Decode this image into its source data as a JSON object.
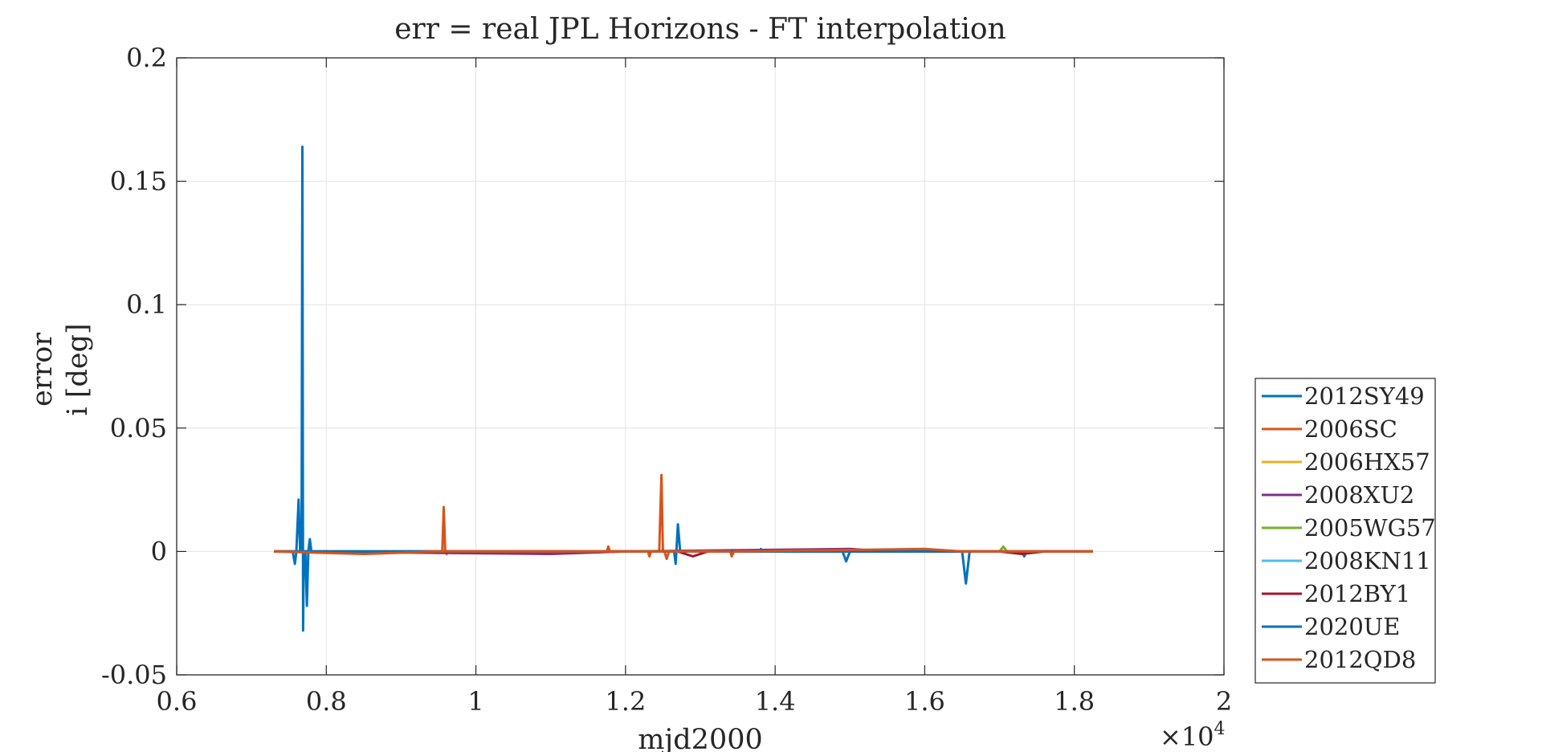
{
  "chart_data": {
    "type": "line",
    "title": "err = real JPL Horizons - FT interpolation",
    "xlabel": "mjd2000",
    "ylabel": [
      "error",
      "i [deg]"
    ],
    "x_exponent_label": "×10",
    "x_exponent_power": "4",
    "xlim": [
      0.6,
      2.0
    ],
    "ylim": [
      -0.05,
      0.2
    ],
    "x_ticks": [
      "0.6",
      "0.8",
      "1",
      "1.2",
      "1.4",
      "1.6",
      "1.8",
      "2"
    ],
    "y_ticks": [
      "-0.05",
      "0",
      "0.05",
      "0.1",
      "0.15",
      "0.2"
    ],
    "grid": true,
    "legend_position": "outside-right",
    "series": [
      {
        "name": "2012SY49",
        "color": "#0072BD",
        "points": [
          [
            0.73,
            0.0
          ],
          [
            0.755,
            0.0
          ],
          [
            0.758,
            -0.005
          ],
          [
            0.76,
            0.0
          ],
          [
            0.763,
            0.021
          ],
          [
            0.765,
            0.0
          ],
          [
            0.767,
            0.0
          ],
          [
            0.768,
            0.164
          ],
          [
            0.769,
            -0.032
          ],
          [
            0.77,
            0.0
          ],
          [
            0.772,
            0.0
          ],
          [
            0.774,
            -0.022
          ],
          [
            0.776,
            0.0
          ],
          [
            0.778,
            0.005
          ],
          [
            0.78,
            0.0
          ],
          [
            1.265,
            0.0
          ],
          [
            1.267,
            -0.005
          ],
          [
            1.27,
            0.011
          ],
          [
            1.273,
            0.0
          ],
          [
            1.49,
            0.0
          ],
          [
            1.495,
            -0.004
          ],
          [
            1.5,
            0.0
          ],
          [
            1.65,
            0.0
          ],
          [
            1.655,
            -0.013
          ],
          [
            1.66,
            0.0
          ],
          [
            1.73,
            0.0
          ],
          [
            1.733,
            -0.002
          ],
          [
            1.736,
            0.0
          ],
          [
            1.825,
            0.0
          ]
        ]
      },
      {
        "name": "2006SC",
        "color": "#D95319",
        "points": [
          [
            0.73,
            0.0
          ],
          [
            0.955,
            0.0
          ],
          [
            0.957,
            0.018
          ],
          [
            0.959,
            0.0
          ],
          [
            0.961,
            -0.001
          ],
          [
            0.963,
            0.0
          ],
          [
            1.175,
            0.0
          ],
          [
            1.177,
            0.002
          ],
          [
            1.179,
            0.0
          ],
          [
            1.23,
            0.0
          ],
          [
            1.232,
            -0.002
          ],
          [
            1.234,
            0.0
          ],
          [
            1.245,
            0.0
          ],
          [
            1.248,
            0.031
          ],
          [
            1.25,
            0.0
          ],
          [
            1.252,
            0.0
          ],
          [
            1.255,
            -0.003
          ],
          [
            1.258,
            0.0
          ],
          [
            1.825,
            0.0
          ]
        ]
      },
      {
        "name": "2006HX57",
        "color": "#EDB120",
        "points": [
          [
            0.73,
            0.0
          ],
          [
            1.0,
            0.0
          ],
          [
            1.4,
            0.0
          ],
          [
            1.825,
            0.0
          ]
        ]
      },
      {
        "name": "2008XU2",
        "color": "#7E2F8E",
        "points": [
          [
            0.73,
            0.0
          ],
          [
            1.1,
            -0.001
          ],
          [
            1.2,
            0.0
          ],
          [
            1.5,
            0.001
          ],
          [
            1.55,
            0.0
          ],
          [
            1.825,
            0.0
          ]
        ]
      },
      {
        "name": "2005WG57",
        "color": "#77AC30",
        "points": [
          [
            0.73,
            0.0
          ],
          [
            1.7,
            0.0
          ],
          [
            1.705,
            0.002
          ],
          [
            1.71,
            0.0
          ],
          [
            1.825,
            0.0
          ]
        ]
      },
      {
        "name": "2008KN11",
        "color": "#4DBEEE",
        "points": [
          [
            0.73,
            0.0
          ],
          [
            1.3,
            0.0
          ],
          [
            1.825,
            0.0
          ]
        ]
      },
      {
        "name": "2012BY1",
        "color": "#A2142F",
        "points": [
          [
            0.73,
            0.0
          ],
          [
            1.27,
            0.0
          ],
          [
            1.29,
            -0.002
          ],
          [
            1.31,
            0.0
          ],
          [
            1.7,
            0.0
          ],
          [
            1.73,
            -0.001
          ],
          [
            1.76,
            0.0
          ],
          [
            1.825,
            0.0
          ]
        ]
      },
      {
        "name": "2020UE",
        "color": "#0072BD",
        "points": [
          [
            0.73,
            0.0
          ],
          [
            1.38,
            0.0
          ],
          [
            1.381,
            0.001
          ],
          [
            1.383,
            0.0
          ],
          [
            1.825,
            0.0
          ]
        ]
      },
      {
        "name": "2012QD8",
        "color": "#D95319",
        "points": [
          [
            0.73,
            0.0
          ],
          [
            0.85,
            -0.001
          ],
          [
            0.95,
            0.0
          ],
          [
            1.34,
            0.0
          ],
          [
            1.342,
            -0.002
          ],
          [
            1.345,
            0.0
          ],
          [
            1.6,
            0.001
          ],
          [
            1.65,
            0.0
          ],
          [
            1.825,
            0.0
          ]
        ]
      }
    ]
  }
}
